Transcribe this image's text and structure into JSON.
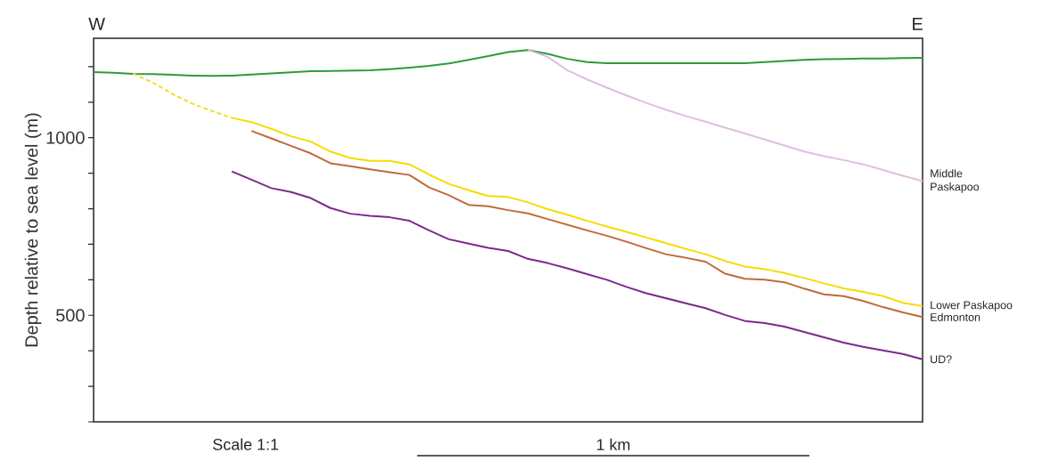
{
  "chart_data": {
    "type": "line",
    "ylabel": "Depth relative to sea level (m)",
    "annotations": [
      "W",
      "E",
      "Scale 1:1",
      "1 km"
    ],
    "categories": [
      null,
      null,
      null,
      null,
      null,
      null,
      null,
      null,
      null,
      null,
      null,
      null,
      null,
      null,
      null,
      null,
      null,
      null,
      null,
      null,
      null,
      null,
      null,
      null,
      null,
      null,
      null,
      null,
      null,
      null,
      null,
      null,
      null,
      null,
      null,
      null,
      null,
      null,
      null,
      null,
      null,
      null,
      null
    ],
    "ylim": [
      200,
      1280
    ],
    "yticks": [
      {
        "value": 200,
        "label": null
      },
      {
        "value": 300,
        "label": null
      },
      {
        "value": 400,
        "label": null
      },
      500,
      {
        "value": 600,
        "label": null
      },
      {
        "value": 700,
        "label": null
      },
      {
        "value": 800,
        "label": null
      },
      {
        "value": 900,
        "label": null
      },
      1000,
      {
        "value": 1100,
        "label": null
      },
      {
        "value": 1200,
        "label": null
      }
    ],
    "tick_labels": "y",
    "series": [
      {
        "color": "#2e9a3a",
        "values": [
          1185,
          1183,
          1180,
          1179,
          1177,
          1175,
          1174,
          1175,
          1178,
          1181,
          1184,
          1187,
          1188,
          1189,
          1190,
          1193,
          1197,
          1202,
          1209,
          1219,
          1230,
          1241,
          1247,
          1236,
          1222,
          1213,
          1210,
          1210,
          1210,
          1210,
          1210,
          1210,
          1210,
          1210,
          1213,
          1216,
          1219,
          1221,
          1222,
          1223,
          1223,
          1224,
          1225
        ]
      },
      {
        "color": "#f0e030",
        "line_style": "dashed",
        "values": [
          null,
          null,
          1180,
          1155,
          1123,
          1096,
          1075,
          1056,
          null,
          null,
          null,
          null,
          null,
          null,
          null,
          null,
          null,
          null,
          null,
          null,
          null,
          null,
          null,
          null,
          null,
          null,
          null,
          null,
          null,
          null,
          null,
          null,
          null,
          null,
          null,
          null,
          null,
          null,
          null,
          null,
          null,
          null,
          null
        ]
      },
      {
        "name": "Lower Paskapoo",
        "color": "#f5dc00",
        "values": [
          null,
          null,
          null,
          null,
          null,
          null,
          null,
          1056,
          1044,
          1025,
          1004,
          989,
          961,
          943,
          935,
          935,
          925,
          896,
          870,
          852,
          836,
          833,
          818,
          799,
          783,
          766,
          750,
          735,
          719,
          703,
          687,
          672,
          653,
          637,
          630,
          619,
          605,
          590,
          576,
          566,
          554,
          535,
          526
        ]
      },
      {
        "name": "Edmonton",
        "color": "#c0693a",
        "values": [
          null,
          null,
          null,
          null,
          null,
          null,
          null,
          null,
          1019,
          998,
          977,
          956,
          928,
          920,
          911,
          903,
          895,
          860,
          838,
          811,
          807,
          796,
          787,
          771,
          755,
          739,
          724,
          707,
          689,
          672,
          662,
          651,
          617,
          603,
          600,
          593,
          575,
          559,
          554,
          540,
          523,
          508,
          495
        ]
      },
      {
        "name": "UD?",
        "color": "#7b2a8a",
        "values": [
          null,
          null,
          null,
          null,
          null,
          null,
          null,
          905,
          882,
          858,
          847,
          830,
          802,
          786,
          780,
          776,
          766,
          739,
          714,
          702,
          690,
          681,
          659,
          647,
          632,
          616,
          600,
          580,
          562,
          548,
          534,
          520,
          501,
          484,
          478,
          468,
          453,
          438,
          423,
          411,
          401,
          391,
          376
        ]
      },
      {
        "name": "Middle Paskapoo",
        "color": "#dfbfdf",
        "values": [
          null,
          null,
          null,
          null,
          null,
          null,
          null,
          null,
          null,
          null,
          null,
          null,
          null,
          null,
          null,
          null,
          null,
          null,
          null,
          null,
          null,
          null,
          1247,
          1228,
          1190,
          1164,
          1141,
          1119,
          1098,
          1079,
          1061,
          1045,
          1028,
          1012,
          995,
          978,
          961,
          948,
          937,
          925,
          909,
          893,
          878
        ]
      }
    ]
  }
}
